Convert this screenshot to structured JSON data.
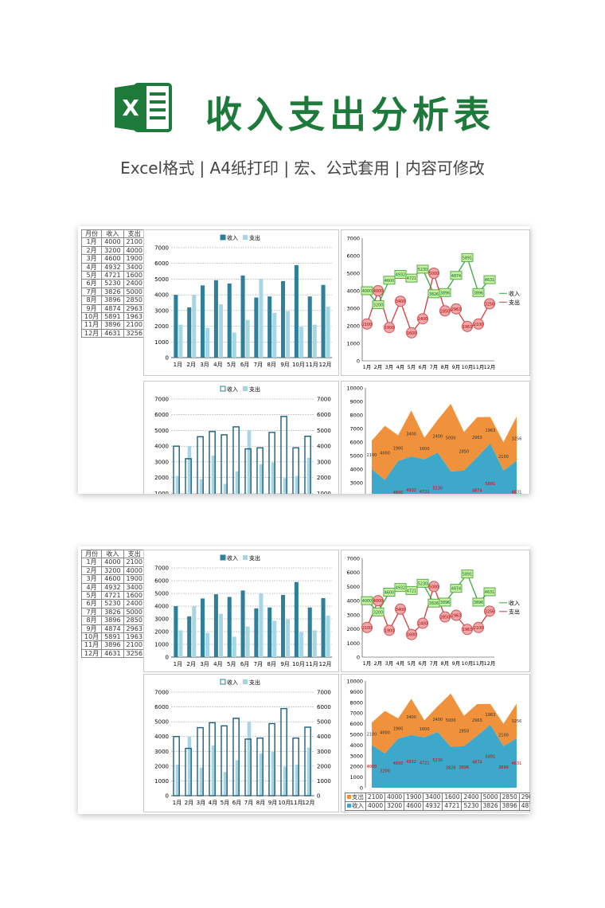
{
  "header": {
    "title": "收入支出分析表",
    "subtitle": "Excel格式 |  A4纸打印 | 宏、公式套用 | 内容可修改",
    "logo_letter": "X"
  },
  "colors": {
    "income": "#2e7f9a",
    "expense": "#a6d6e6",
    "line_income": "#3aaa3a",
    "line_expense": "#d83b3b",
    "area_income": "#3da8c9",
    "area_expense": "#f0923c"
  },
  "table": {
    "headers": [
      "月份",
      "收入",
      "支出"
    ],
    "rows": [
      [
        "1月",
        "4000",
        "2100"
      ],
      [
        "2月",
        "3200",
        "4000"
      ],
      [
        "3月",
        "4600",
        "1900"
      ],
      [
        "4月",
        "4932",
        "3400"
      ],
      [
        "5月",
        "4721",
        "1600"
      ],
      [
        "6月",
        "5230",
        "2400"
      ],
      [
        "7月",
        "3826",
        "5000"
      ],
      [
        "8月",
        "3896",
        "2850"
      ],
      [
        "9月",
        "4874",
        "2963"
      ],
      [
        "10月",
        "5891",
        "1963"
      ],
      [
        "11月",
        "3896",
        "2100"
      ],
      [
        "12月",
        "4631",
        "3256"
      ]
    ]
  },
  "legend": {
    "income": "收入",
    "expense": "支出"
  },
  "chart_data": [
    {
      "type": "bar",
      "categories": [
        "1月",
        "2月",
        "3月",
        "4月",
        "5月",
        "6月",
        "7月",
        "8月",
        "9月",
        "10月",
        "11月",
        "12月"
      ],
      "series": [
        {
          "name": "收入",
          "values": [
            4000,
            3200,
            4600,
            4932,
            4721,
            5230,
            3826,
            3896,
            4874,
            5891,
            3896,
            4631
          ]
        },
        {
          "name": "支出",
          "values": [
            2100,
            4000,
            1900,
            3400,
            1600,
            2400,
            5000,
            2850,
            2963,
            1963,
            2100,
            3256
          ]
        }
      ],
      "ylim": [
        0,
        7000
      ],
      "yticks": [
        0,
        1000,
        2000,
        3000,
        4000,
        5000,
        6000,
        7000
      ],
      "grid": true,
      "legend": "top"
    },
    {
      "type": "line",
      "categories": [
        "1月",
        "2月",
        "3月",
        "4月",
        "5月",
        "6月",
        "7月",
        "8月",
        "9月",
        "10月",
        "11月",
        "12月"
      ],
      "series": [
        {
          "name": "收入",
          "values": [
            4000,
            3200,
            4600,
            4932,
            4721,
            5230,
            3826,
            3896,
            4874,
            5891,
            3896,
            4631
          ]
        },
        {
          "name": "支出",
          "values": [
            2100,
            4000,
            1900,
            3400,
            1600,
            2400,
            5000,
            2850,
            2963,
            1963,
            2100,
            3256
          ]
        }
      ],
      "ylim": [
        0,
        7000
      ],
      "yticks": [
        0,
        1000,
        2000,
        3000,
        4000,
        5000,
        6000,
        7000
      ],
      "legend": "right"
    },
    {
      "type": "bar",
      "categories": [
        "1月",
        "2月",
        "3月",
        "4月",
        "5月",
        "6月",
        "7月",
        "8月",
        "9月",
        "10月",
        "11月",
        "12月"
      ],
      "series": [
        {
          "name": "收入",
          "values": [
            4000,
            3200,
            4600,
            4932,
            4721,
            5230,
            3826,
            3896,
            4874,
            5891,
            3896,
            4631
          ]
        },
        {
          "name": "支出",
          "values": [
            2100,
            4000,
            1900,
            3400,
            1600,
            2400,
            5000,
            2850,
            2963,
            1963,
            2100,
            3256
          ]
        }
      ],
      "ylim": [
        0,
        7000
      ],
      "yticks": [
        0,
        1000,
        2000,
        3000,
        4000,
        5000,
        6000,
        7000
      ],
      "grid": true,
      "legend": "top",
      "secondary_axis": true
    },
    {
      "type": "area",
      "categories": [
        "1月",
        "2月",
        "3月",
        "4月",
        "5月",
        "6月",
        "7月",
        "8月",
        "9月",
        "10月",
        "11月",
        "12月"
      ],
      "series": [
        {
          "name": "收入",
          "values": [
            4000,
            3200,
            4600,
            4932,
            4721,
            5230,
            3826,
            3896,
            4874,
            5891,
            3896,
            4631
          ]
        },
        {
          "name": "支出",
          "values": [
            2100,
            4000,
            1900,
            3400,
            1600,
            2400,
            5000,
            2850,
            2963,
            1963,
            2100,
            3256
          ]
        }
      ],
      "stacked": true,
      "ylim": [
        0,
        10000
      ],
      "yticks": [
        0,
        1000,
        2000,
        3000,
        4000,
        5000,
        6000,
        7000,
        8000,
        9000,
        10000
      ]
    }
  ]
}
